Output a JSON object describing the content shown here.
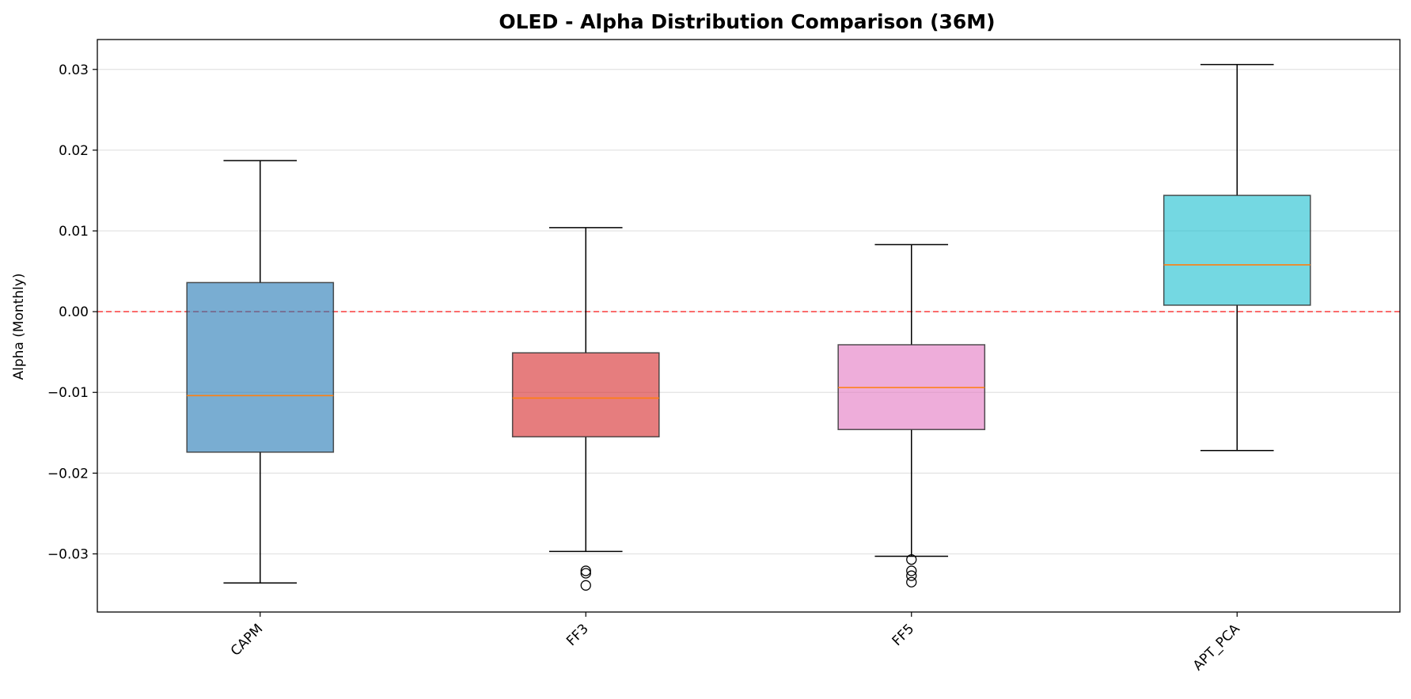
{
  "chart_data": {
    "type": "boxplot",
    "title": "OLED - Alpha Distribution Comparison (36M)",
    "xlabel": "",
    "ylabel": "Alpha (Monthly)",
    "ylim": [
      -0.0372,
      0.0337
    ],
    "yticks": [
      0.03,
      0.02,
      0.01,
      0.0,
      -0.01,
      -0.02,
      -0.03
    ],
    "ytick_labels": [
      "0.03",
      "0.02",
      "0.01",
      "0.00",
      "−0.01",
      "−0.02",
      "−0.03"
    ],
    "grid": "horizontal",
    "reference_line": {
      "y": 0.0,
      "color": "#ff0000",
      "style": "dashed"
    },
    "median_color": "#ff7f0e",
    "categories": [
      "CAPM",
      "FF3",
      "FF5",
      "APT_PCA"
    ],
    "boxes": [
      {
        "name": "CAPM",
        "color": "#1f77b4",
        "whislo": -0.0336,
        "q1": -0.0174,
        "median": -0.0104,
        "q3": 0.0036,
        "whishi": 0.0187,
        "fliers": []
      },
      {
        "name": "FF3",
        "color": "#d62728",
        "whislo": -0.0297,
        "q1": -0.0155,
        "median": -0.0107,
        "q3": -0.0051,
        "whishi": 0.0104,
        "fliers": [
          -0.0321,
          -0.0324,
          -0.0339
        ]
      },
      {
        "name": "FF5",
        "color": "#e377c2",
        "whislo": -0.0303,
        "q1": -0.0146,
        "median": -0.0094,
        "q3": -0.0041,
        "whishi": 0.0083,
        "fliers": [
          -0.0307,
          -0.0321,
          -0.0327,
          -0.0335
        ]
      },
      {
        "name": "APT_PCA",
        "color": "#17becf",
        "whislo": -0.0172,
        "q1": 0.0008,
        "median": 0.0058,
        "q3": 0.0144,
        "whishi": 0.0306,
        "fliers": []
      }
    ]
  }
}
